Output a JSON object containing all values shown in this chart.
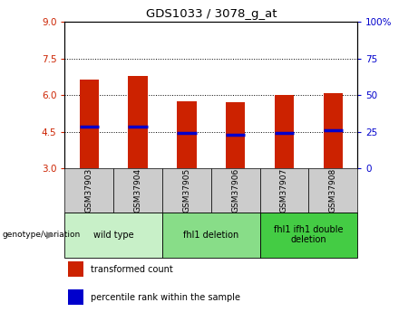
{
  "title": "GDS1033 / 3078_g_at",
  "samples": [
    "GSM37903",
    "GSM37904",
    "GSM37905",
    "GSM37906",
    "GSM37907",
    "GSM37908"
  ],
  "bar_bottoms": [
    3,
    3,
    3,
    3,
    3,
    3
  ],
  "bar_tops": [
    6.65,
    6.78,
    5.75,
    5.7,
    6.0,
    6.1
  ],
  "blue_marks": [
    4.7,
    4.72,
    4.44,
    4.39,
    4.44,
    4.55
  ],
  "ylim": [
    3,
    9
  ],
  "yticks_left": [
    3,
    4.5,
    6,
    7.5,
    9
  ],
  "yticks_right": [
    0,
    25,
    50,
    75,
    100
  ],
  "left_tick_color": "#cc2200",
  "right_tick_color": "#0000cc",
  "bar_color": "#cc2200",
  "blue_mark_color": "#0000cc",
  "groups": [
    {
      "label": "wild type",
      "col_indices": [
        0,
        1
      ],
      "color": "#c8f0c8"
    },
    {
      "label": "fhl1 deletion",
      "col_indices": [
        2,
        3
      ],
      "color": "#88dd88"
    },
    {
      "label": "fhl1 ifh1 double\ndeletion",
      "col_indices": [
        4,
        5
      ],
      "color": "#44cc44"
    }
  ],
  "legend_items": [
    {
      "label": "transformed count",
      "color": "#cc2200"
    },
    {
      "label": "percentile rank within the sample",
      "color": "#0000cc"
    }
  ],
  "bar_width": 0.4,
  "sample_box_color": "#cccccc",
  "genotype_label": "genotype/variation"
}
